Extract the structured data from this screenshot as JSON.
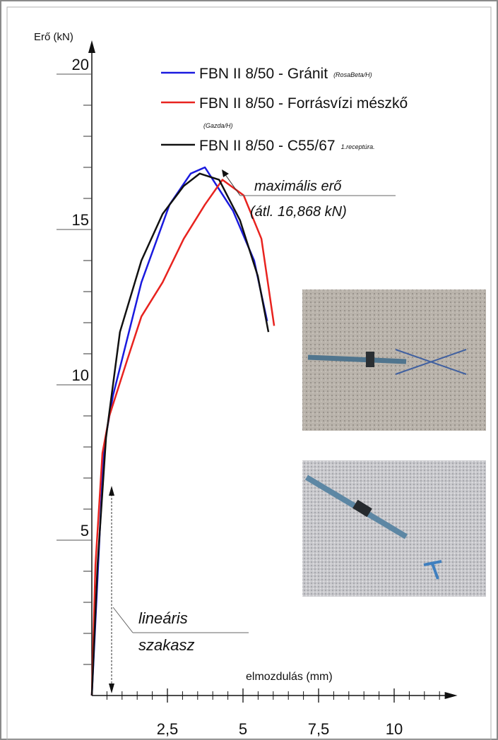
{
  "chart_data": {
    "type": "line",
    "y_label": "Erő (kN)",
    "x_label": "elmozdulás (mm)",
    "xlim": [
      0,
      12
    ],
    "ylim": [
      0,
      21
    ],
    "xticks": [
      {
        "value": 2.5,
        "label": "2,5"
      },
      5,
      {
        "value": 7.5,
        "label": "7,5"
      },
      10
    ],
    "x_minor_ticks": [
      0.5,
      1,
      1.5,
      2,
      3,
      3.5,
      4,
      4.5,
      5.5,
      6,
      6.5,
      7,
      8,
      8.5,
      9,
      9.5,
      10.5,
      11,
      11.5
    ],
    "yticks": [
      5,
      10,
      15,
      20
    ],
    "y_minor_ticks": [
      1,
      2,
      3,
      4,
      6,
      7,
      8,
      9,
      11,
      12,
      13,
      14,
      16,
      17,
      18,
      19
    ],
    "series": [
      {
        "name": "FBN II 8/50 - Gránit",
        "name_note": "(RosaBeta/H)",
        "color": "#1a1adf",
        "x": [
          0,
          0.4,
          0.7,
          1.64,
          2.57,
          3.27,
          3.74,
          4.67,
          5.37,
          5.8
        ],
        "values": [
          0,
          8,
          9.66,
          13.3,
          15.8,
          16.8,
          17.0,
          15.6,
          14.0,
          12.05
        ]
      },
      {
        "name": "FBN II 8/50 - Forrásvízi mészkő",
        "name_note": "(Gazda/H)",
        "color": "#e8231f",
        "x": [
          0,
          0.12,
          0.35,
          0.58,
          1.17,
          1.64,
          2.34,
          3.04,
          3.74,
          4.32,
          5.02,
          5.61,
          6.03
        ],
        "values": [
          0,
          4.2,
          7.8,
          9.0,
          10.8,
          12.2,
          13.3,
          14.7,
          15.8,
          16.6,
          16.1,
          14.7,
          11.9
        ]
      },
      {
        "name": "FBN II 8/50 - C55/67",
        "name_note": "1.receptúra.",
        "color": "#111111",
        "x": [
          0,
          0.19,
          0.47,
          0.93,
          1.64,
          2.34,
          3.04,
          3.57,
          4.21,
          4.9,
          5.49,
          5.84
        ],
        "values": [
          0,
          4.2,
          8.3,
          11.7,
          14.0,
          15.5,
          16.4,
          16.8,
          16.6,
          15.3,
          13.5,
          11.7
        ]
      }
    ],
    "annotations": [
      "maximális erő",
      "(átl. 16,868 kN)",
      "lineáris",
      "szakasz"
    ]
  }
}
